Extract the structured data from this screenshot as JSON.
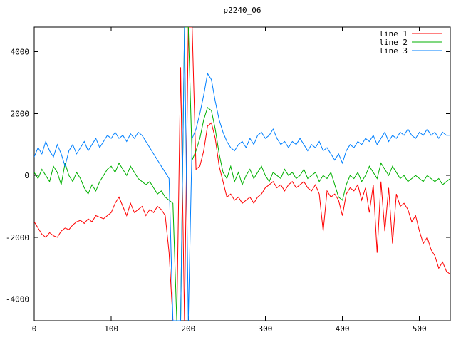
{
  "chart_data": {
    "type": "line",
    "title": "p2240_06",
    "xlabel": "",
    "ylabel": "",
    "xlim": [
      0,
      540
    ],
    "ylim": [
      -4700,
      4800
    ],
    "xticks": [
      0,
      100,
      200,
      300,
      400,
      500
    ],
    "yticks": [
      -4000,
      -2000,
      0,
      2000,
      4000
    ],
    "grid": false,
    "legend_position": "top-right",
    "background_color": "#ffffff",
    "axis_color": "#000000",
    "x_start": 0,
    "x_step": 5,
    "series": [
      {
        "name": "line 1",
        "color": "#ff0000",
        "values": [
          -1500,
          -1700,
          -1900,
          -2000,
          -1850,
          -1950,
          -2000,
          -1800,
          -1700,
          -1750,
          -1600,
          -1500,
          -1450,
          -1550,
          -1400,
          -1500,
          -1300,
          -1350,
          -1400,
          -1300,
          -1200,
          -900,
          -700,
          -1000,
          -1300,
          -900,
          -1200,
          -1100,
          -1000,
          -1300,
          -1100,
          -1200,
          -1000,
          -1100,
          -1300,
          -2500,
          -4700,
          -4700,
          3500,
          -4700,
          4800,
          4800,
          200,
          300,
          800,
          1600,
          1700,
          1200,
          300,
          -200,
          -700,
          -600,
          -800,
          -700,
          -900,
          -800,
          -700,
          -900,
          -700,
          -600,
          -400,
          -300,
          -200,
          -400,
          -300,
          -500,
          -300,
          -200,
          -400,
          -300,
          -200,
          -400,
          -500,
          -300,
          -600,
          -1800,
          -500,
          -700,
          -600,
          -800,
          -1300,
          -600,
          -400,
          -500,
          -300,
          -800,
          -400,
          -1200,
          -300,
          -2500,
          -200,
          -1800,
          -400,
          -2200,
          -600,
          -1000,
          -900,
          -1100,
          -1500,
          -1300,
          -1800,
          -2200,
          -2000,
          -2400,
          -2600,
          -3000,
          -2800,
          -3100,
          -3200
        ]
      },
      {
        "name": "line 2",
        "color": "#00b000",
        "values": [
          100,
          -100,
          200,
          0,
          -200,
          300,
          100,
          -300,
          400,
          0,
          -200,
          100,
          -100,
          -400,
          -600,
          -300,
          -500,
          -200,
          0,
          200,
          300,
          100,
          400,
          200,
          0,
          300,
          100,
          -100,
          -200,
          -300,
          -200,
          -400,
          -600,
          -500,
          -700,
          -800,
          -900,
          -4700,
          -4700,
          4800,
          4800,
          500,
          800,
          1200,
          1800,
          2200,
          2100,
          1500,
          700,
          100,
          -100,
          300,
          -200,
          100,
          -300,
          0,
          200,
          -100,
          100,
          300,
          0,
          -200,
          100,
          0,
          -100,
          200,
          0,
          100,
          -100,
          0,
          200,
          -100,
          0,
          100,
          -200,
          0,
          -100,
          100,
          -300,
          -700,
          -800,
          -300,
          0,
          -100,
          100,
          -200,
          0,
          300,
          100,
          -100,
          400,
          200,
          0,
          300,
          100,
          -100,
          0,
          -200,
          -100,
          0,
          -100,
          -200,
          0,
          -100,
          -200,
          -100,
          -300,
          -200,
          -100
        ]
      },
      {
        "name": "line 3",
        "color": "#0080ff",
        "values": [
          600,
          900,
          700,
          1100,
          800,
          600,
          1000,
          700,
          300,
          800,
          1000,
          700,
          900,
          1100,
          800,
          1000,
          1200,
          900,
          1100,
          1300,
          1200,
          1400,
          1200,
          1300,
          1100,
          1350,
          1200,
          1400,
          1300,
          1100,
          900,
          700,
          500,
          300,
          100,
          -100,
          -4700,
          -4700,
          -4700,
          4800,
          -4700,
          1200,
          1500,
          2000,
          2600,
          3300,
          3100,
          2400,
          1800,
          1400,
          1100,
          900,
          800,
          1000,
          1100,
          900,
          1200,
          1000,
          1300,
          1400,
          1200,
          1300,
          1500,
          1200,
          1000,
          1100,
          900,
          1100,
          1000,
          1200,
          1000,
          800,
          1000,
          900,
          1100,
          800,
          900,
          700,
          500,
          700,
          400,
          800,
          1000,
          900,
          1100,
          1000,
          1200,
          1100,
          1300,
          1000,
          1200,
          1400,
          1100,
          1300,
          1200,
          1400,
          1300,
          1500,
          1300,
          1200,
          1400,
          1300,
          1500,
          1300,
          1400,
          1200,
          1400,
          1300,
          1300
        ]
      }
    ]
  }
}
